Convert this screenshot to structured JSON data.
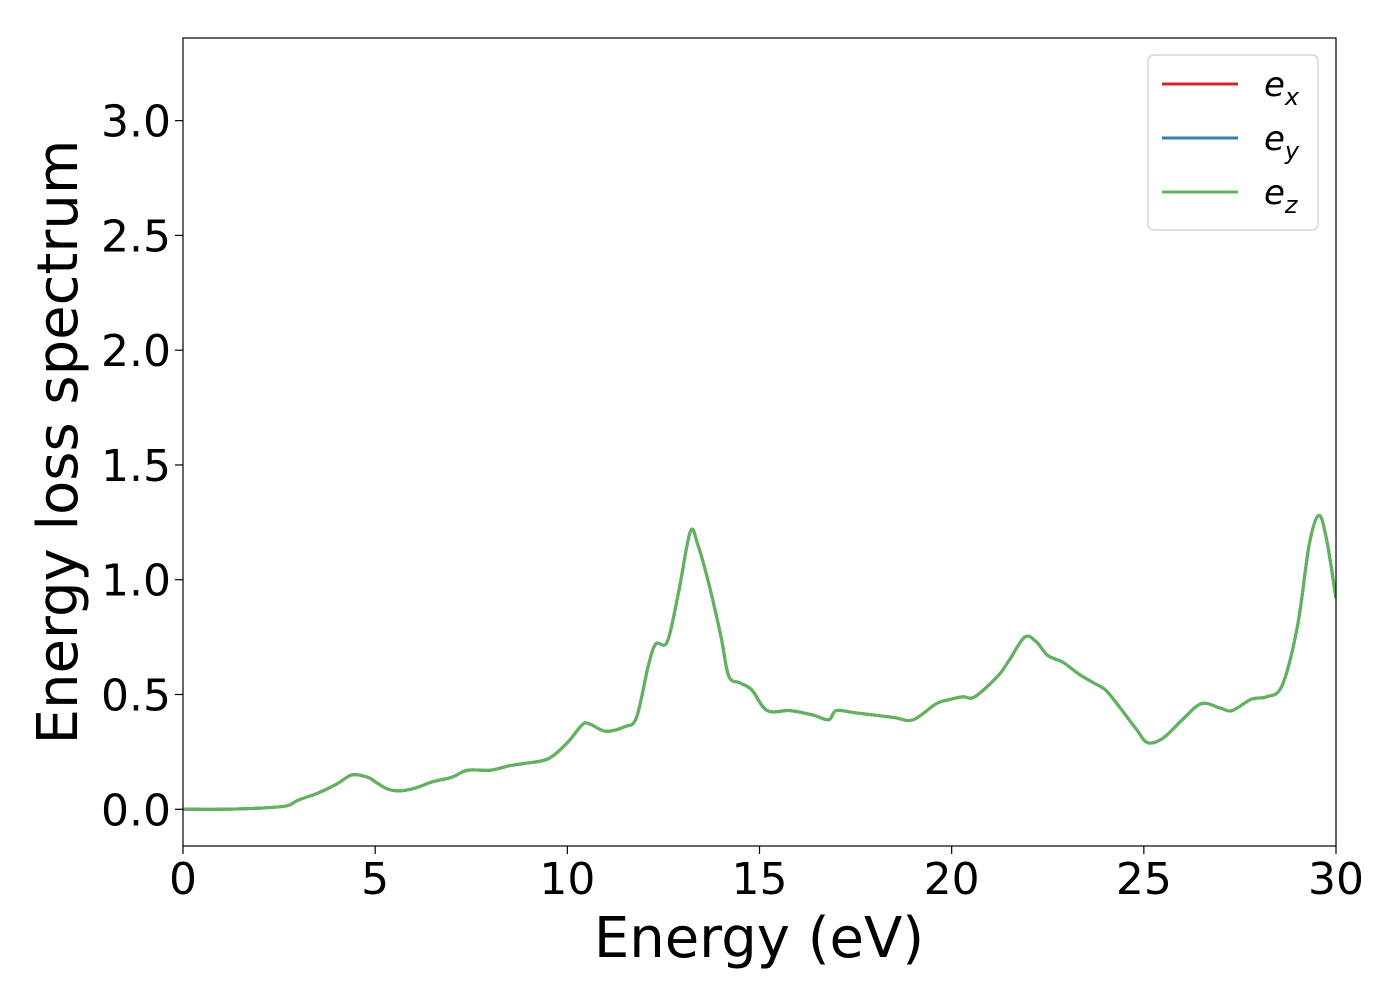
{
  "chart_data": {
    "type": "line",
    "xlabel": "Energy (eV)",
    "ylabel": "Energy loss spectrum",
    "xlim": [
      0,
      30
    ],
    "ylim": [
      -0.16,
      3.36
    ],
    "xticks": [
      0,
      5,
      10,
      15,
      20,
      25,
      30
    ],
    "yticks": [
      0.0,
      0.5,
      1.0,
      1.5,
      2.0,
      2.5,
      3.0
    ],
    "xtick_labels": [
      "0",
      "5",
      "10",
      "15",
      "20",
      "25",
      "30"
    ],
    "ytick_labels": [
      "0.0",
      "0.5",
      "1.0",
      "1.5",
      "2.0",
      "2.5",
      "3.0"
    ],
    "grid": false,
    "legend_position": "top-right",
    "x": [
      0,
      1,
      2,
      2.7,
      3,
      3.5,
      4,
      4.4,
      4.8,
      5.0,
      5.3,
      5.6,
      6.0,
      6.5,
      7.0,
      7.4,
      8.0,
      8.5,
      8.9,
      9.5,
      10.0,
      10.4,
      10.6,
      11.0,
      11.5,
      11.8,
      12.1,
      12.3,
      12.6,
      12.9,
      13.2,
      13.4,
      13.7,
      14.0,
      14.2,
      14.5,
      14.8,
      15.2,
      15.8,
      16.4,
      16.8,
      17.0,
      17.5,
      18.0,
      18.5,
      19.0,
      19.6,
      20.0,
      20.3,
      20.6,
      21.2,
      21.5,
      21.9,
      22.2,
      22.5,
      22.9,
      23.3,
      23.7,
      24.0,
      24.3,
      24.8,
      25.1,
      25.5,
      26.0,
      26.5,
      27.0,
      27.3,
      27.8,
      28.2,
      28.6,
      29.0,
      29.3,
      29.55,
      29.75,
      30.0
    ],
    "series": [
      {
        "name": "e_x",
        "label_base": "e",
        "label_sub": "x",
        "color": "#d62728",
        "values": [
          0.0,
          0.0,
          0.005,
          0.015,
          0.04,
          0.07,
          0.11,
          0.15,
          0.14,
          0.12,
          0.09,
          0.08,
          0.09,
          0.12,
          0.14,
          0.17,
          0.17,
          0.19,
          0.2,
          0.22,
          0.29,
          0.37,
          0.37,
          0.34,
          0.36,
          0.4,
          0.62,
          0.72,
          0.73,
          0.95,
          1.21,
          1.15,
          0.97,
          0.75,
          0.58,
          0.55,
          0.52,
          0.43,
          0.43,
          0.41,
          0.39,
          0.43,
          0.42,
          0.41,
          0.4,
          0.39,
          0.46,
          0.48,
          0.49,
          0.49,
          0.58,
          0.65,
          0.75,
          0.73,
          0.67,
          0.64,
          0.59,
          0.55,
          0.52,
          0.46,
          0.35,
          0.29,
          0.31,
          0.39,
          0.46,
          0.44,
          0.43,
          0.48,
          0.49,
          0.54,
          0.8,
          1.15,
          1.28,
          1.18,
          0.92
        ]
      },
      {
        "name": "e_y",
        "label_base": "e",
        "label_sub": "y",
        "color": "#377eb8",
        "values": [
          0.0,
          0.0,
          0.005,
          0.015,
          0.04,
          0.07,
          0.11,
          0.15,
          0.14,
          0.12,
          0.09,
          0.08,
          0.09,
          0.12,
          0.14,
          0.17,
          0.17,
          0.19,
          0.2,
          0.22,
          0.29,
          0.37,
          0.37,
          0.34,
          0.36,
          0.4,
          0.62,
          0.72,
          0.73,
          0.95,
          1.21,
          1.15,
          0.97,
          0.75,
          0.58,
          0.55,
          0.52,
          0.43,
          0.43,
          0.41,
          0.39,
          0.43,
          0.42,
          0.41,
          0.4,
          0.39,
          0.46,
          0.48,
          0.49,
          0.49,
          0.58,
          0.65,
          0.75,
          0.73,
          0.67,
          0.64,
          0.59,
          0.55,
          0.52,
          0.46,
          0.35,
          0.29,
          0.31,
          0.39,
          0.46,
          0.44,
          0.43,
          0.48,
          0.49,
          0.54,
          0.8,
          1.15,
          1.28,
          1.18,
          0.92
        ]
      },
      {
        "name": "e_z",
        "label_base": "e",
        "label_sub": "z",
        "color": "#5fb55b",
        "values": [
          0.0,
          0.0,
          0.005,
          0.015,
          0.04,
          0.07,
          0.11,
          0.15,
          0.14,
          0.12,
          0.09,
          0.08,
          0.09,
          0.12,
          0.14,
          0.17,
          0.17,
          0.19,
          0.2,
          0.22,
          0.29,
          0.37,
          0.37,
          0.34,
          0.36,
          0.4,
          0.62,
          0.72,
          0.73,
          0.95,
          1.21,
          1.15,
          0.97,
          0.75,
          0.58,
          0.55,
          0.52,
          0.43,
          0.43,
          0.41,
          0.39,
          0.43,
          0.42,
          0.41,
          0.4,
          0.39,
          0.46,
          0.48,
          0.49,
          0.49,
          0.58,
          0.65,
          0.75,
          0.73,
          0.67,
          0.64,
          0.59,
          0.55,
          0.52,
          0.46,
          0.35,
          0.29,
          0.31,
          0.39,
          0.46,
          0.44,
          0.43,
          0.48,
          0.49,
          0.54,
          0.8,
          1.15,
          1.28,
          1.18,
          0.92
        ]
      }
    ]
  }
}
